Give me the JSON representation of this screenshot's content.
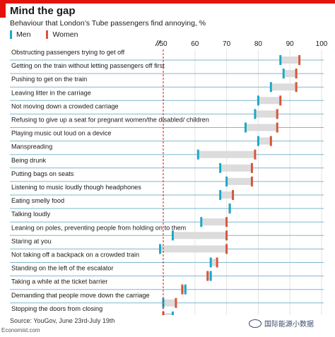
{
  "header": {
    "title": "Mind the gap",
    "subtitle": "Behaviour that London’s Tube passengers find annoying, %"
  },
  "legend": {
    "men_label": "Men",
    "women_label": "Women"
  },
  "colors": {
    "men": "#1aa9c7",
    "women": "#d8553c",
    "reference_line": "#e3120b",
    "row_line": "#7fb6cf",
    "range_band": "#dcdcdc",
    "brand": "#e3120b"
  },
  "chart_data": {
    "type": "dumbbell",
    "x_ticks": [
      "50",
      "60",
      "70",
      "80",
      "90",
      "100"
    ],
    "xlim": [
      50,
      100
    ],
    "reference_value": 50,
    "axis_break": true,
    "gridlines": true,
    "series": [
      {
        "name": "Men"
      },
      {
        "name": "Women"
      }
    ],
    "rows": [
      {
        "label": "Obstructing passengers trying to get off",
        "men": 87,
        "women": 93
      },
      {
        "label": "Getting on the train without letting passengers off first",
        "men": 88,
        "women": 92
      },
      {
        "label": "Pushing to get on the train",
        "men": 84,
        "women": 92
      },
      {
        "label": "Leaving litter in the carriage",
        "men": 80,
        "women": 87
      },
      {
        "label": "Not moving down a crowded carriage",
        "men": 79,
        "women": 86
      },
      {
        "label": "Refusing to give up a seat for pregnant women/the disabled/ children",
        "men": 76,
        "women": 86
      },
      {
        "label": "Playing music out loud on a device",
        "men": 80,
        "women": 84
      },
      {
        "label": "Manspreading",
        "men": 61,
        "women": 79
      },
      {
        "label": "Being drunk",
        "men": 68,
        "women": 78
      },
      {
        "label": "Putting bags on seats",
        "men": 70,
        "women": 78
      },
      {
        "label": "Listening to music loudly though headphones",
        "men": 68,
        "women": 72
      },
      {
        "label": "Eating smelly food",
        "men": 71,
        "women": 71
      },
      {
        "label": "Talking loudly",
        "men": 62,
        "women": 70
      },
      {
        "label": "Leaning on poles, preventing people from holding on to them",
        "men": 53,
        "women": 70
      },
      {
        "label": "Staring at you",
        "men": 49,
        "women": 70
      },
      {
        "label": "Not taking off a backpack on a crowded train",
        "men": 65,
        "women": 67
      },
      {
        "label": "Standing on the left of the escalator",
        "men": 65,
        "women": 64
      },
      {
        "label": "Taking a while at the ticket barrier",
        "men": 57,
        "women": 56
      },
      {
        "label": "Demanding that people move down the carriage",
        "men": 50,
        "women": 54
      },
      {
        "label": "Stopping the doors from closing",
        "men": 53,
        "women": 50
      }
    ]
  },
  "footer": {
    "source": "Source: YouGov, June 23rd-July 19th",
    "site": "Economist.com",
    "watermark": "国际能源小数据"
  }
}
